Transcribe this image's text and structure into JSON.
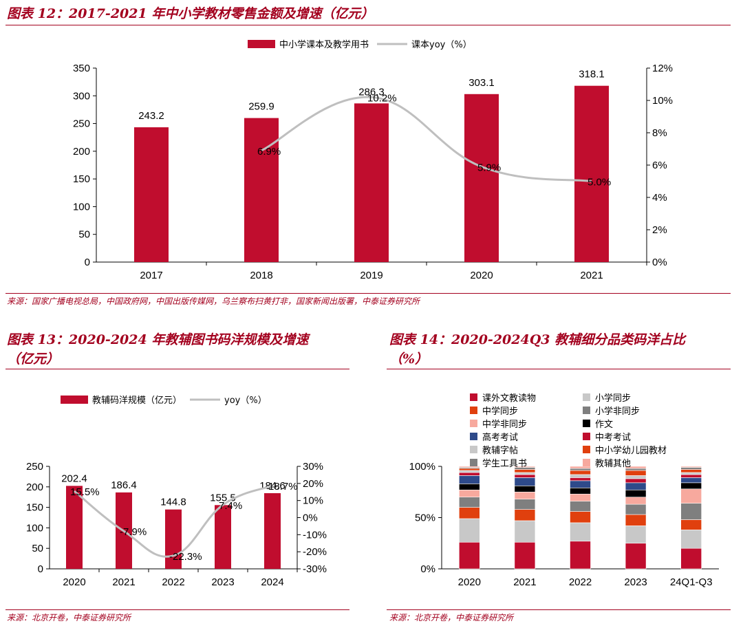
{
  "fig12": {
    "title": "图表 12：2017-2021 年中小学教材零售金额及增速（亿元）",
    "source": "来源：国家广播电视总局，中国政府网，中国出版传媒网，乌兰察布扫黄打非，国家新闻出版署，中泰证券研究所"
  },
  "fig13": {
    "title_line1": "图表 13：2020-2024 年教辅图书码洋规模及增速",
    "title_line2": "（亿元）",
    "source": "来源：北京开卷，中泰证券研究所"
  },
  "fig14": {
    "title_line1": "图表 14：2020-2024Q3 教辅细分品类码洋占比",
    "title_line2": "（%）",
    "source": "来源：北京开卷，中泰证券研究所"
  },
  "colors": {
    "accent": "#a3001e",
    "bar": "#c00d2e",
    "line": "#bfbfbf"
  },
  "chart_data": [
    {
      "type": "bar",
      "categories": [
        "2017",
        "2018",
        "2019",
        "2020",
        "2021"
      ],
      "series": [
        {
          "name": "中小学课本及教学用书",
          "type": "bar",
          "axis": "left",
          "values": [
            243.2,
            259.9,
            286.3,
            303.1,
            318.1
          ],
          "labels": [
            "243.2",
            "259.9",
            "286.3",
            "303.1",
            "318.1"
          ]
        },
        {
          "name": "课本yoy（%）",
          "type": "line",
          "axis": "right",
          "values": [
            null,
            6.9,
            10.2,
            5.9,
            5.0
          ],
          "labels": [
            "",
            "6.9%",
            "10.2%",
            "5.9%",
            "5.0%"
          ]
        }
      ],
      "ylim": [
        0,
        350
      ],
      "yticks": [
        "0",
        "50",
        "100",
        "150",
        "200",
        "250",
        "300",
        "350"
      ],
      "y2lim": [
        0,
        12
      ],
      "y2ticks": [
        "0%",
        "2%",
        "4%",
        "6%",
        "8%",
        "10%",
        "12%"
      ],
      "legend": "top"
    },
    {
      "type": "bar",
      "categories": [
        "2020",
        "2021",
        "2022",
        "2023",
        "2024"
      ],
      "series": [
        {
          "name": "教辅码洋规模（亿元）",
          "type": "bar",
          "axis": "left",
          "values": [
            202.4,
            186.4,
            144.8,
            155.5,
            184.6
          ],
          "labels": [
            "202.4",
            "186.4",
            "144.8",
            "155.5",
            "184.6"
          ]
        },
        {
          "name": "yoy（%）",
          "type": "line",
          "axis": "right",
          "values": [
            15.5,
            -7.9,
            -22.3,
            7.4,
            18.7
          ],
          "labels": [
            "15.5%",
            "-7.9%",
            "-22.3%",
            "7.4%",
            "18.7%"
          ]
        }
      ],
      "ylim": [
        0,
        250
      ],
      "yticks": [
        "0",
        "50",
        "100",
        "150",
        "200",
        "250"
      ],
      "y2lim": [
        -30,
        30
      ],
      "y2ticks": [
        "-30%",
        "-20%",
        "-10%",
        "0%",
        "10%",
        "20%",
        "30%"
      ],
      "legend": "top"
    },
    {
      "type": "bar",
      "stacked": true,
      "categories": [
        "2020",
        "2021",
        "2022",
        "2023",
        "24Q1-Q3"
      ],
      "ylim": [
        0,
        100
      ],
      "yticks": [
        "0%",
        "50%",
        "100%"
      ],
      "legend": "top",
      "series": [
        {
          "name": "课外文教读物",
          "color": "#c00d2e",
          "values": [
            26,
            26,
            27,
            25,
            20
          ]
        },
        {
          "name": "小学同步",
          "color": "#c8c8c8",
          "values": [
            23,
            21,
            18,
            17,
            18
          ]
        },
        {
          "name": "中学同步",
          "color": "#e0400e",
          "values": [
            11,
            11,
            11,
            11,
            10
          ]
        },
        {
          "name": "小学非同步",
          "color": "#7f7f7f",
          "values": [
            10,
            10,
            10,
            10,
            16
          ]
        },
        {
          "name": "中学非同步",
          "color": "#f7a99e",
          "values": [
            7,
            7,
            7,
            7,
            14
          ]
        },
        {
          "name": "作文",
          "color": "#000000",
          "values": [
            6,
            6,
            6,
            7,
            6
          ]
        },
        {
          "name": "高考考试",
          "color": "#2e4a8a",
          "values": [
            8,
            8,
            7,
            7,
            5
          ]
        },
        {
          "name": "中考考试",
          "color": "#c00d2e",
          "values": [
            3,
            3,
            3,
            4,
            3
          ]
        },
        {
          "name": "教辅字帖",
          "color": "#c8c8c8",
          "values": [
            2,
            2,
            3,
            3,
            2
          ]
        },
        {
          "name": "中小学幼儿园教材",
          "color": "#e0400e",
          "values": [
            2,
            3,
            4,
            5,
            3
          ]
        },
        {
          "name": "学生工具书",
          "color": "#7f7f7f",
          "values": [
            1,
            2,
            2,
            2,
            2
          ]
        },
        {
          "name": "教辅其他",
          "color": "#f7a99e",
          "values": [
            1,
            1,
            2,
            2,
            1
          ]
        }
      ]
    }
  ]
}
